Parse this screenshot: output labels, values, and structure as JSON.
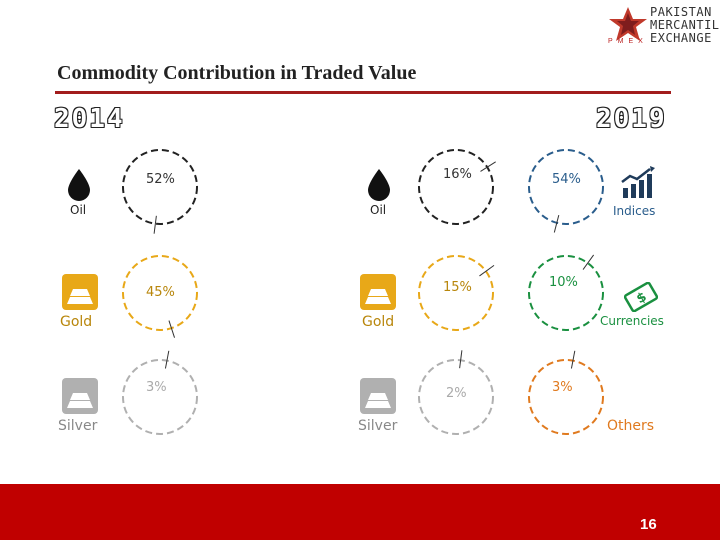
{
  "logo": {
    "line1": "PAKISTAN",
    "line2": "MERCANTILE",
    "line3": "EXCHANGE",
    "sub": "PMEX"
  },
  "title": "Commodity Contribution in Traded Value",
  "years": {
    "left": "2014",
    "right": "2019"
  },
  "labels": {
    "oil": "Oil",
    "gold": "Gold",
    "silver": "Silver",
    "indices": "Indices",
    "currencies": "Currencies",
    "others": "Others"
  },
  "chart_data": [
    {
      "type": "pie",
      "year": "2014",
      "slices": [
        {
          "label": "Oil",
          "value": 52,
          "text": "52%"
        },
        {
          "label": "Gold",
          "value": 45,
          "text": "45%"
        },
        {
          "label": "Silver",
          "value": 3,
          "text": "3%"
        }
      ]
    },
    {
      "type": "pie",
      "year": "2019",
      "slices": [
        {
          "label": "Oil",
          "value": 16,
          "text": "16%"
        },
        {
          "label": "Gold",
          "value": 15,
          "text": "15%"
        },
        {
          "label": "Silver",
          "value": 2,
          "text": "2%"
        },
        {
          "label": "Indices",
          "value": 54,
          "text": "54%"
        },
        {
          "label": "Currencies",
          "value": 10,
          "text": "10%"
        },
        {
          "label": "Others",
          "value": 3,
          "text": "3%"
        }
      ]
    }
  ],
  "colors": {
    "accent": "#a21c1c",
    "footer": "#c00000",
    "gold": "#e8a818",
    "silver": "#b0b0b0",
    "blue": "#2a5d8c",
    "green": "#1a9040",
    "orange": "#e07a1f"
  },
  "page_number": "16"
}
